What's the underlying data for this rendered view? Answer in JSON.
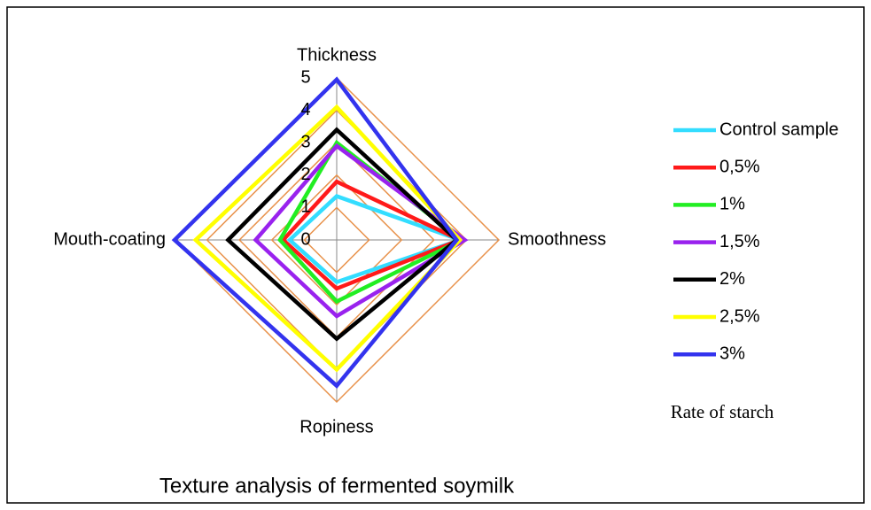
{
  "chart_data": {
    "type": "radar",
    "title": "Texture analysis of fermented soymilk",
    "legend_title": "Rate of starch",
    "categories": [
      "Thickness",
      "Smoothness",
      "Ropiness",
      "Mouth-coating"
    ],
    "rlim": [
      0,
      5
    ],
    "rticks": [
      0,
      1,
      2,
      3,
      4,
      5
    ],
    "grid_color": "#e8914a",
    "series": [
      {
        "name": "Control sample",
        "color": "#33ddff",
        "values": [
          1.35,
          3.8,
          1.3,
          1.45
        ]
      },
      {
        "name": "0,5%",
        "color": "#ff1a1a",
        "values": [
          1.8,
          3.8,
          1.5,
          1.65
        ]
      },
      {
        "name": "1%",
        "color": "#22ee22",
        "values": [
          3.0,
          3.85,
          1.9,
          1.75
        ]
      },
      {
        "name": "1,5%",
        "color": "#9922ee",
        "values": [
          2.9,
          3.95,
          2.35,
          2.5
        ]
      },
      {
        "name": "2%",
        "color": "#000000",
        "values": [
          3.4,
          3.7,
          3.05,
          3.35
        ]
      },
      {
        "name": "2,5%",
        "color": "#ffff00",
        "values": [
          4.1,
          3.8,
          4.0,
          4.35
        ]
      },
      {
        "name": "3%",
        "color": "#3333ee",
        "values": [
          4.95,
          3.7,
          4.5,
          5.0
        ]
      }
    ]
  }
}
